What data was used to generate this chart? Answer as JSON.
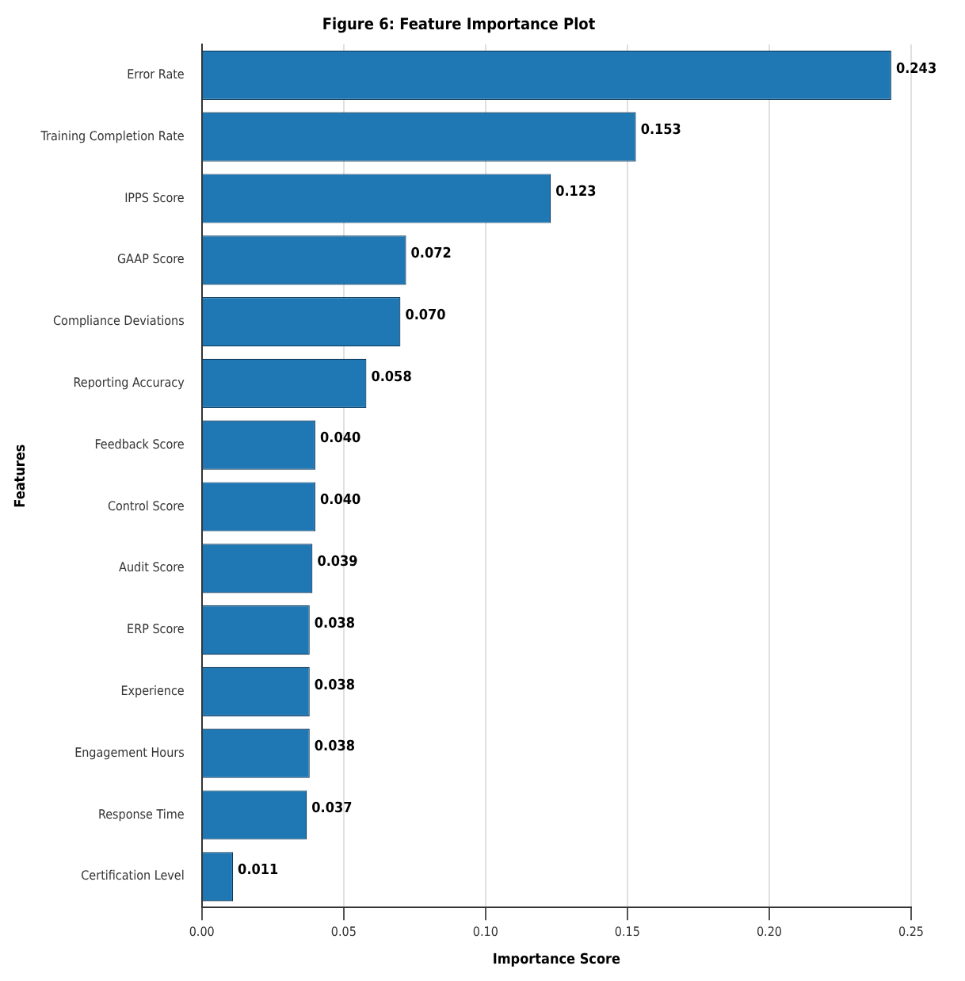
{
  "chart_data": {
    "type": "bar",
    "orientation": "horizontal",
    "title": "Figure 6: Feature Importance Plot",
    "xlabel": "Importance Score",
    "ylabel": "Features",
    "categories": [
      "Error Rate",
      "Training Completion Rate",
      "IPPS Score",
      "GAAP Score",
      "Compliance Deviations",
      "Reporting Accuracy",
      "Feedback Score",
      "Control Score",
      "Audit Score",
      "ERP Score",
      "Experience",
      "Engagement Hours",
      "Response Time",
      "Certification Level"
    ],
    "values": [
      0.243,
      0.153,
      0.123,
      0.072,
      0.07,
      0.058,
      0.04,
      0.04,
      0.039,
      0.038,
      0.038,
      0.038,
      0.037,
      0.011
    ],
    "color": "#1f77b4",
    "xlim": [
      0,
      0.25
    ],
    "xticks": [
      {
        "value": 0,
        "label": "0.00"
      },
      {
        "value": 0.05,
        "label": "0.05"
      },
      {
        "value": 0.1,
        "label": "0.10"
      },
      {
        "value": 0.15,
        "label": "0.15"
      },
      {
        "value": 0.2,
        "label": "0.20"
      },
      {
        "value": 0.25,
        "label": "0.25"
      }
    ],
    "value_labels": [
      "0.243",
      "0.153",
      "0.123",
      "0.072",
      "0.070",
      "0.058",
      "0.040",
      "0.040",
      "0.039",
      "0.038",
      "0.038",
      "0.038",
      "0.037",
      "0.011"
    ],
    "grid": "x"
  }
}
